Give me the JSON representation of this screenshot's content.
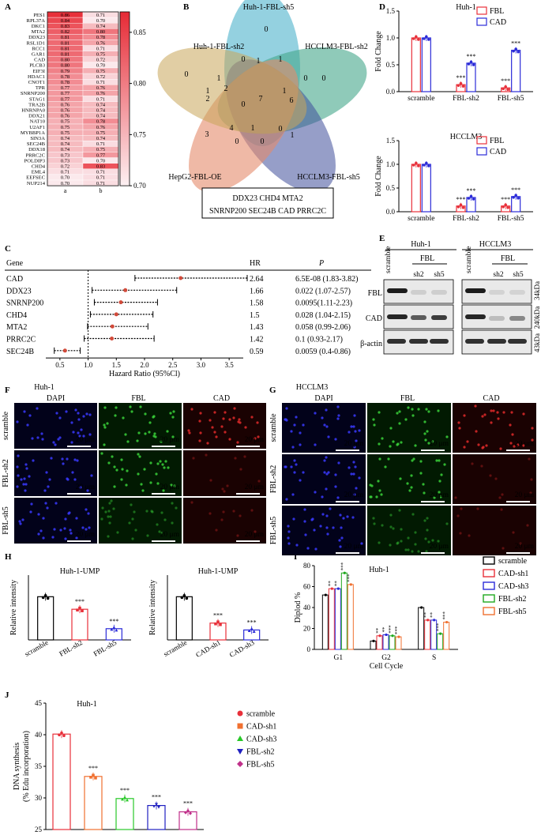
{
  "panels": {
    "A": "A",
    "B": "B",
    "C": "C",
    "D": "D",
    "E": "E",
    "F": "F",
    "G": "G",
    "H": "H",
    "I": "I",
    "J": "J"
  },
  "heatmap": {
    "genes": [
      "PES1",
      "RPL37A",
      "DKC1",
      "MTA2",
      "DDX23",
      "RSL1D1",
      "RCC1",
      "GAR1",
      "CAD",
      "PLCB3",
      "EIF3I",
      "HDAC1",
      "CNOT1",
      "TPR",
      "SNRNP200",
      "STAG1",
      "TRA2B",
      "HNRNPA0",
      "DDX21",
      "NAT10",
      "U2AF1",
      "MYBBP1A",
      "SIN3A",
      "SEC24B",
      "DDX18",
      "PRRC2C",
      "POLDIP3",
      "CHD4",
      "EML4",
      "EEFSEC",
      "NUP214"
    ],
    "col_a": [
      "0.86",
      "0.84",
      "0.83",
      "0.82",
      "0.81",
      "0.81",
      "0.81",
      "0.81",
      "0.80",
      "0.80",
      "0.79",
      "0.78",
      "0.78",
      "0.77",
      "0.77",
      "0.77",
      "0.76",
      "0.76",
      "0.76",
      "0.75",
      "0.75",
      "0.75",
      "0.74",
      "0.74",
      "0.74",
      "0.73",
      "0.73",
      "0.72",
      "0.71",
      "0.70",
      "0.70"
    ],
    "col_b": [
      "0.71",
      "0.70",
      "0.74",
      "0.80",
      "0.78",
      "0.76",
      "0.71",
      "0.75",
      "0.72",
      "0.70",
      "0.75",
      "0.72",
      "0.71",
      "0.76",
      "0.76",
      "0.71",
      "0.74",
      "0.74",
      "0.74",
      "0.78",
      "0.76",
      "0.75",
      "0.74",
      "0.71",
      "0.75",
      "0.77",
      "0.70",
      "0.83",
      "0.71",
      "0.71",
      "0.71"
    ],
    "x_labels": [
      "a",
      "b"
    ],
    "colorbar_ticks": [
      "0.85",
      "0.80",
      "0.75",
      "0.70"
    ],
    "colors": {
      "high": "#e8303a",
      "low": "#fbe9ec"
    }
  },
  "venn": {
    "sets": [
      "Huh-1-FBL-sh5",
      "HCCLM3-FBL-sh2",
      "HCCLM3-FBL-sh5",
      "HepG2-FBL-OE",
      "Huh-1-FBL-sh2"
    ],
    "center": "7",
    "box_line1": "DDX23 CHD4 MTA2",
    "box_line2": "SNRNP200 SEC24B CAD PRRC2C"
  },
  "forest": {
    "gene_header": "Gene",
    "hr_header": "HR",
    "p_header": "P",
    "rows": [
      {
        "gene": "CAD",
        "hr": "2.64",
        "p": "6.5E-08 (1.83-3.82)",
        "hr_val": 2.64,
        "lo": 1.83,
        "hi": 3.82
      },
      {
        "gene": "DDX23",
        "hr": "1.66",
        "p": "0.022 (1.07-2.57)",
        "hr_val": 1.66,
        "lo": 1.07,
        "hi": 2.57
      },
      {
        "gene": "SNRNP200",
        "hr": "1.58",
        "p": "0.0095(1.11-2.23)",
        "hr_val": 1.58,
        "lo": 1.11,
        "hi": 2.23
      },
      {
        "gene": "CHD4",
        "hr": "1.5",
        "p": "0.028 (1.04-2.15)",
        "hr_val": 1.5,
        "lo": 1.04,
        "hi": 2.15
      },
      {
        "gene": "MTA2",
        "hr": "1.43",
        "p": "0.058 (0.99-2.06)",
        "hr_val": 1.43,
        "lo": 0.99,
        "hi": 2.06
      },
      {
        "gene": "PRRC2C",
        "hr": "1.42",
        "p": "0.1 (0.93-2.17)",
        "hr_val": 1.42,
        "lo": 0.93,
        "hi": 2.17
      },
      {
        "gene": "SEC24B",
        "hr": "0.59",
        "p": "0.0059 (0.4-0.86)",
        "hr_val": 0.59,
        "lo": 0.4,
        "hi": 0.86
      }
    ],
    "ticks": [
      "0.5",
      "1.0",
      "1.5",
      "2.0",
      "2.5",
      "3.0",
      "3.5"
    ],
    "xlabel": "Hazard Ratio (95%Cl)"
  },
  "blot": {
    "huh_label": "Huh-1",
    "hcc_label": "HCCLM3",
    "fbl_label": "FBL",
    "lanes": [
      "scramble",
      "sh2",
      "sh5"
    ],
    "rows": [
      "FBL",
      "CAD",
      "β-actin"
    ],
    "sizes": [
      "34kDa",
      "240kDa",
      "43kDa"
    ]
  },
  "if_images": {
    "huh_title": "Huh-1",
    "hcc_title": "HCCLM3",
    "channels": [
      "DAPI",
      "FBL",
      "CAD"
    ],
    "rows": [
      "scramble",
      "FBL-sh2",
      "FBL-sh5"
    ],
    "scale": "20 μm"
  },
  "chart_data": [
    {
      "id": "D1",
      "type": "bar",
      "title": "Huh-1",
      "ylabel": "Fold Change",
      "categories": [
        "scramble",
        "FBL-sh2",
        "FBL-sh5"
      ],
      "series": [
        {
          "name": "FBL",
          "values": [
            1.0,
            0.13,
            0.07
          ],
          "color": "#e8303a"
        },
        {
          "name": "CAD",
          "values": [
            1.0,
            0.53,
            0.77
          ],
          "color": "#2b2bd8"
        }
      ],
      "ylim": [
        0,
        1.5
      ],
      "yticks": [
        "0.0",
        "0.5",
        "1.0",
        "1.5"
      ],
      "sig": "***"
    },
    {
      "id": "D2",
      "type": "bar",
      "title": "HCCLM3",
      "ylabel": "Fold Change",
      "categories": [
        "scramble",
        "FBL-sh2",
        "FBL-sh5"
      ],
      "series": [
        {
          "name": "FBL",
          "values": [
            1.0,
            0.12,
            0.12
          ],
          "color": "#e8303a"
        },
        {
          "name": "CAD",
          "values": [
            1.0,
            0.3,
            0.32
          ],
          "color": "#2b2bd8"
        }
      ],
      "ylim": [
        0,
        1.5
      ],
      "yticks": [
        "0.0",
        "0.5",
        "1.0",
        "1.5"
      ],
      "sig": "***"
    },
    {
      "id": "H1",
      "type": "bar",
      "title": "Huh-1-UMP",
      "ylabel": "Relative intensity",
      "categories": [
        "scramble",
        "FBL-sh2",
        "FBL-sh5"
      ],
      "values": [
        1.0,
        0.71,
        0.26
      ],
      "colors": [
        "#000000",
        "#e8303a",
        "#2b2bd8"
      ],
      "ylim": [
        0,
        1.5
      ],
      "sig": "***"
    },
    {
      "id": "H2",
      "type": "bar",
      "title": "Huh-1-UMP",
      "ylabel": "Relative intensity",
      "categories": [
        "scramble",
        "CAD-sh1",
        "CAD-sh3"
      ],
      "values": [
        1.0,
        0.39,
        0.23
      ],
      "colors": [
        "#000000",
        "#e8303a",
        "#2b2bd8"
      ],
      "ylim": [
        0,
        1.5
      ],
      "sig": "***"
    },
    {
      "id": "I",
      "type": "bar",
      "title": "Huh-1",
      "ylabel": "Diplod %",
      "xlabel": "Cell Cycle",
      "categories": [
        "G1",
        "G2",
        "S"
      ],
      "series": [
        {
          "name": "scramble",
          "values": [
            52,
            8,
            40
          ],
          "color": "#000000"
        },
        {
          "name": "CAD-sh1",
          "values": [
            58,
            13,
            28
          ],
          "color": "#e8303a"
        },
        {
          "name": "CAD-sh3",
          "values": [
            58,
            14,
            28
          ],
          "color": "#2b2bd8"
        },
        {
          "name": "FBL-sh2",
          "values": [
            73,
            13,
            15
          ],
          "color": "#1ea81e"
        },
        {
          "name": "FBL-sh5",
          "values": [
            62,
            12,
            26
          ],
          "color": "#f07030"
        }
      ],
      "ylim": [
        0,
        80
      ],
      "yticks": [
        "0",
        "20",
        "40",
        "60",
        "80"
      ],
      "sig_labels": [
        [
          "",
          "**",
          "**",
          "***",
          "***"
        ],
        [
          "",
          "**",
          "**",
          "***",
          "***"
        ],
        [
          "",
          "**",
          "**",
          "***",
          "***"
        ]
      ]
    },
    {
      "id": "J",
      "type": "bar",
      "title": "Huh-1",
      "ylabel": "DNA synthesis",
      "ylabel2": "(% Edu incorporation)",
      "categories": [
        "scramble",
        "CAD-sh1",
        "CAD-sh3",
        "FBL-sh2",
        "FBL-sh5"
      ],
      "values": [
        40.1,
        33.4,
        29.9,
        28.8,
        27.8
      ],
      "colors": [
        "#e8303a",
        "#f07030",
        "#28c828",
        "#2020c0",
        "#c0308a"
      ],
      "markers": [
        "circle",
        "square",
        "triangle",
        "triangle-down",
        "diamond"
      ],
      "ylim": [
        25,
        45
      ],
      "yticks": [
        "25",
        "30",
        "35",
        "40",
        "45"
      ],
      "sig": "***"
    }
  ]
}
